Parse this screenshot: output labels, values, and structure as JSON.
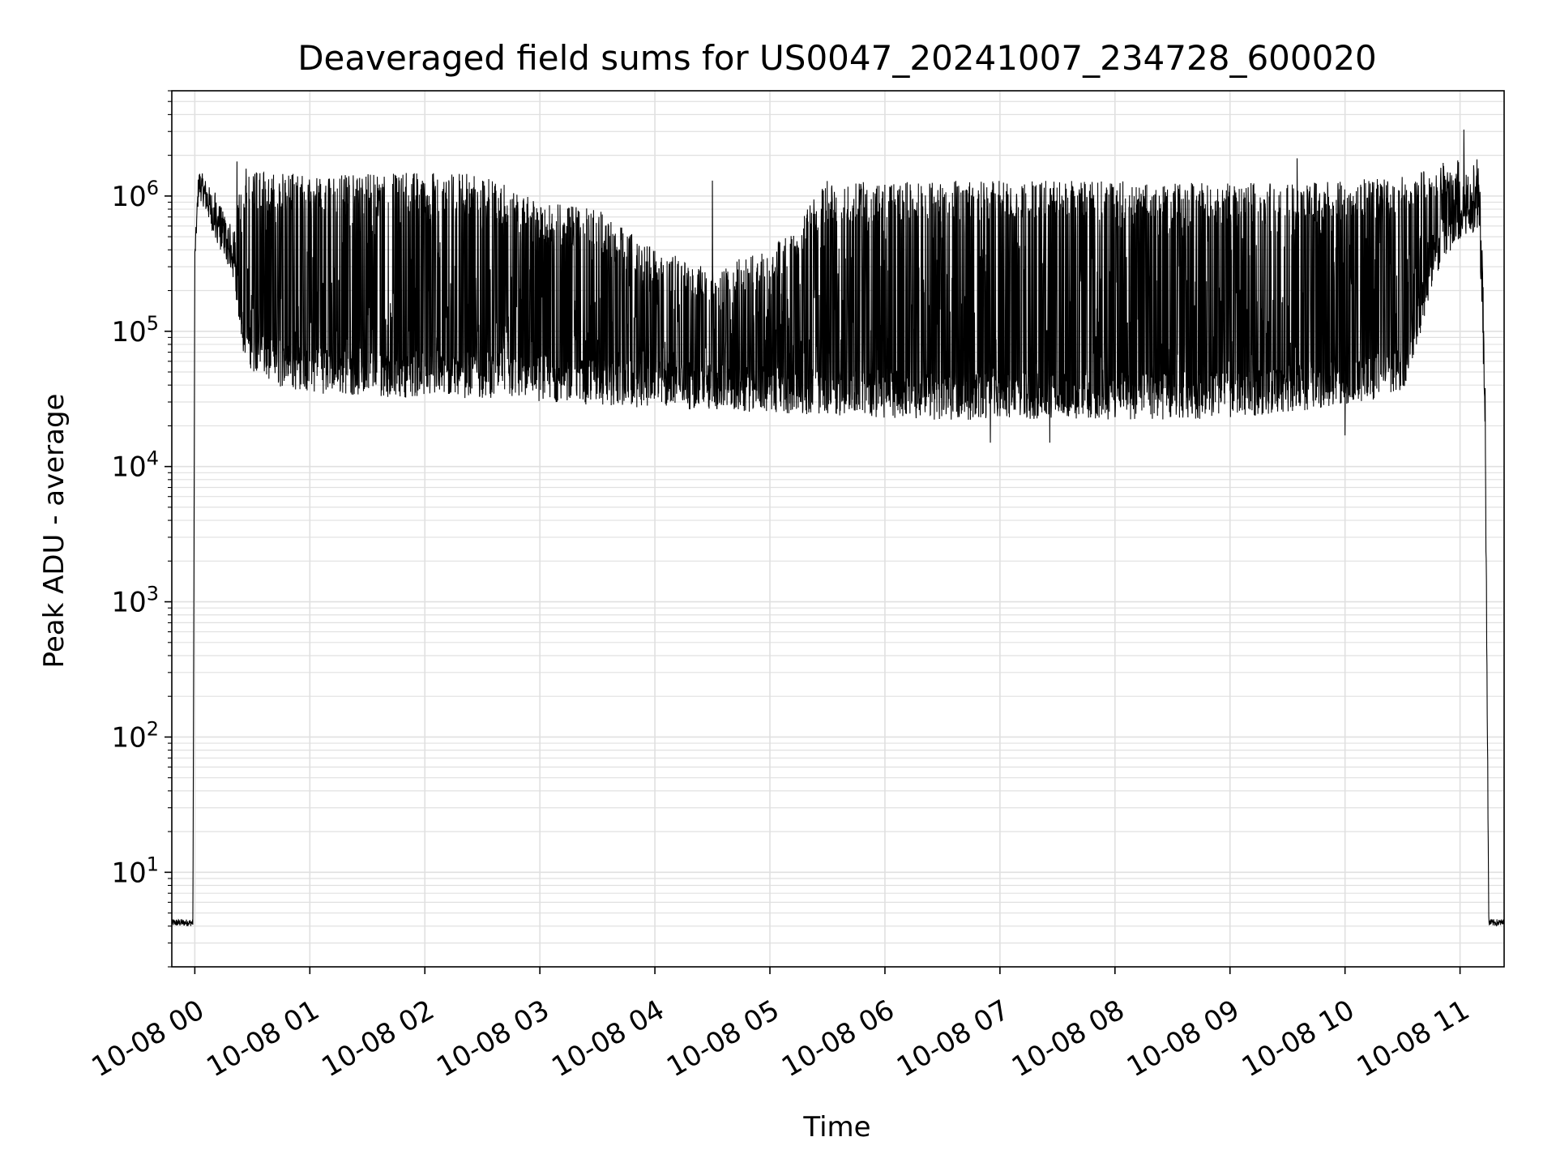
{
  "chart_data": {
    "type": "line",
    "title": "Deaveraged field sums for US0047_20241007_234728_600020",
    "xlabel": "Time",
    "ylabel": "Peak ADU - average",
    "yscale": "log",
    "ylim": [
      2,
      6000000
    ],
    "xlim": [
      "2024-10-07T23:48:00",
      "2024-10-08T11:23:00"
    ],
    "x_ticks": [
      {
        "t": "2024-10-08T00:00:00",
        "label": "10-08 00"
      },
      {
        "t": "2024-10-08T01:00:00",
        "label": "10-08 01"
      },
      {
        "t": "2024-10-08T02:00:00",
        "label": "10-08 02"
      },
      {
        "t": "2024-10-08T03:00:00",
        "label": "10-08 03"
      },
      {
        "t": "2024-10-08T04:00:00",
        "label": "10-08 04"
      },
      {
        "t": "2024-10-08T05:00:00",
        "label": "10-08 05"
      },
      {
        "t": "2024-10-08T06:00:00",
        "label": "10-08 06"
      },
      {
        "t": "2024-10-08T07:00:00",
        "label": "10-08 07"
      },
      {
        "t": "2024-10-08T08:00:00",
        "label": "10-08 08"
      },
      {
        "t": "2024-10-08T09:00:00",
        "label": "10-08 09"
      },
      {
        "t": "2024-10-08T10:00:00",
        "label": "10-08 10"
      },
      {
        "t": "2024-10-08T11:00:00",
        "label": "10-08 11"
      }
    ],
    "y_ticks": [
      {
        "value": 10,
        "base": "10",
        "exp": "1"
      },
      {
        "value": 100,
        "base": "10",
        "exp": "2"
      },
      {
        "value": 1000,
        "base": "10",
        "exp": "3"
      },
      {
        "value": 10000,
        "base": "10",
        "exp": "4"
      },
      {
        "value": 100000,
        "base": "10",
        "exp": "5"
      },
      {
        "value": 1000000,
        "base": "10",
        "exp": "6"
      }
    ],
    "grid": true,
    "line_color": "#000000",
    "grid_color": "#e0e0e0",
    "series": [
      {
        "envelope": [
          {
            "t": "2024-10-07T23:48:00",
            "low": 4,
            "high": 4.5
          },
          {
            "t": "2024-10-07T23:59:00",
            "low": 4,
            "high": 4.5
          },
          {
            "t": "2024-10-08T00:00:00",
            "low": 300000,
            "high": 400000
          },
          {
            "t": "2024-10-08T00:02:00",
            "low": 1000000,
            "high": 1600000
          },
          {
            "t": "2024-10-08T00:05:00",
            "low": 800000,
            "high": 1400000
          },
          {
            "t": "2024-10-08T00:10:00",
            "low": 500000,
            "high": 1000000
          },
          {
            "t": "2024-10-08T00:15:00",
            "low": 350000,
            "high": 800000
          },
          {
            "t": "2024-10-08T00:20:00",
            "low": 250000,
            "high": 500000
          },
          {
            "t": "2024-10-08T00:25:00",
            "low": 70000,
            "high": 1700000
          },
          {
            "t": "2024-10-08T00:30:00",
            "low": 50000,
            "high": 1500000
          },
          {
            "t": "2024-10-08T00:45:00",
            "low": 38000,
            "high": 1500000
          },
          {
            "t": "2024-10-08T01:00:00",
            "low": 35000,
            "high": 1400000
          },
          {
            "t": "2024-10-08T01:30:00",
            "low": 33000,
            "high": 1450000
          },
          {
            "t": "2024-10-08T02:00:00",
            "low": 32000,
            "high": 1500000
          },
          {
            "t": "2024-10-08T02:30:00",
            "low": 32000,
            "high": 1450000
          },
          {
            "t": "2024-10-08T03:00:00",
            "low": 30000,
            "high": 900000
          },
          {
            "t": "2024-10-08T03:30:00",
            "low": 28000,
            "high": 800000
          },
          {
            "t": "2024-10-08T04:00:00",
            "low": 27000,
            "high": 400000
          },
          {
            "t": "2024-10-08T04:30:00",
            "low": 26000,
            "high": 300000
          },
          {
            "t": "2024-10-08T05:00:00",
            "low": 25000,
            "high": 400000
          },
          {
            "t": "2024-10-08T05:30:00",
            "low": 24000,
            "high": 1300000
          },
          {
            "t": "2024-10-08T06:00:00",
            "low": 23000,
            "high": 1300000
          },
          {
            "t": "2024-10-08T06:30:00",
            "low": 22000,
            "high": 1300000
          },
          {
            "t": "2024-10-08T07:00:00",
            "low": 22000,
            "high": 1300000
          },
          {
            "t": "2024-10-08T07:30:00",
            "low": 22000,
            "high": 1300000
          },
          {
            "t": "2024-10-08T08:00:00",
            "low": 22000,
            "high": 1300000
          },
          {
            "t": "2024-10-08T08:30:00",
            "low": 22000,
            "high": 1250000
          },
          {
            "t": "2024-10-08T09:00:00",
            "low": 23000,
            "high": 1250000
          },
          {
            "t": "2024-10-08T09:30:00",
            "low": 25000,
            "high": 1250000
          },
          {
            "t": "2024-10-08T10:00:00",
            "low": 28000,
            "high": 1300000
          },
          {
            "t": "2024-10-08T10:30:00",
            "low": 35000,
            "high": 1400000
          },
          {
            "t": "2024-10-08T10:50:00",
            "low": 300000,
            "high": 1800000
          },
          {
            "t": "2024-10-08T11:10:00",
            "low": 600000,
            "high": 2000000
          },
          {
            "t": "2024-10-08T11:13:00",
            "low": 20000,
            "high": 80000
          },
          {
            "t": "2024-10-08T11:15:00",
            "low": 4,
            "high": 4.5
          },
          {
            "t": "2024-10-08T11:23:00",
            "low": 4,
            "high": 4.5
          }
        ],
        "peaks": [
          {
            "t": "2024-10-08T00:22:00",
            "value": 1800000
          },
          {
            "t": "2024-10-08T04:30:00",
            "value": 1300000
          },
          {
            "t": "2024-10-08T09:35:00",
            "value": 1900000
          },
          {
            "t": "2024-10-08T11:02:00",
            "value": 3100000
          }
        ],
        "dips": [
          {
            "t": "2024-10-08T06:55:00",
            "value": 15000
          },
          {
            "t": "2024-10-08T07:26:00",
            "value": 15000
          },
          {
            "t": "2024-10-08T10:00:00",
            "value": 17000
          }
        ]
      }
    ]
  }
}
